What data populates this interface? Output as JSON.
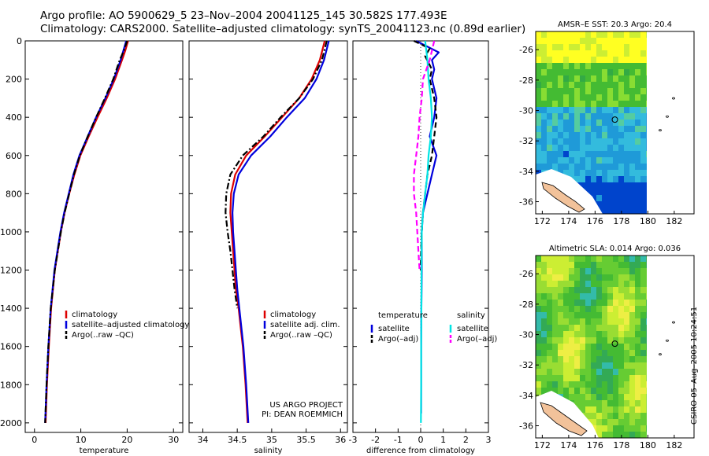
{
  "header": {
    "line1": "Argo profile: AO 5900629_5 23–Nov–2004 20041125_145 30.582S 177.493E",
    "line2": "Climatology: CARS2000. Satellite–adjusted climatology: synTS_20041123.nc (0.89d earlier)"
  },
  "side_label": "CSIRO 05–Aug–2005 10:24:51",
  "colors": {
    "red": "#dd0000",
    "blue": "#0000dd",
    "black": "#000000",
    "cyan": "#00e5e5",
    "magenta": "#ff00ff"
  },
  "chart_data": [
    {
      "type": "line",
      "xlabel": "temperature",
      "xlim": [
        -2,
        32
      ],
      "xticks": [
        0,
        10,
        20,
        30
      ],
      "ylim": [
        0,
        2050
      ],
      "yticks": [
        0,
        200,
        400,
        600,
        800,
        1000,
        1200,
        1400,
        1600,
        1800,
        2000
      ],
      "legend_position": "lower-middle",
      "series": [
        {
          "name": "climatology",
          "color": "#dd0000",
          "style": "solid",
          "y": [
            0,
            50,
            100,
            200,
            300,
            400,
            500,
            600,
            700,
            800,
            900,
            1000,
            1200,
            1400,
            1600,
            1800,
            2000
          ],
          "x": [
            20.2,
            19.6,
            18.9,
            17.4,
            15.6,
            13.6,
            11.7,
            9.9,
            8.6,
            7.5,
            6.5,
            5.7,
            4.4,
            3.6,
            3.1,
            2.7,
            2.4
          ]
        },
        {
          "name": "satellite–adjusted climatology",
          "color": "#0000dd",
          "style": "solid",
          "y": [
            0,
            50,
            100,
            200,
            300,
            400,
            500,
            600,
            700,
            800,
            900,
            1000,
            1200,
            1400,
            1600,
            1800,
            2000
          ],
          "x": [
            19.8,
            19.2,
            18.6,
            17.1,
            15.3,
            13.3,
            11.5,
            9.7,
            8.4,
            7.4,
            6.4,
            5.6,
            4.3,
            3.5,
            3.0,
            2.6,
            2.3
          ]
        },
        {
          "name": "Argo(..raw –QC)",
          "color": "#000000",
          "style": "dashdot",
          "y": [
            0,
            50,
            100,
            200,
            300,
            400,
            500,
            600,
            700,
            800,
            900,
            1000,
            1200,
            1400,
            1600,
            1800,
            2000
          ],
          "x": [
            20.0,
            19.3,
            18.4,
            17.0,
            15.2,
            13.3,
            11.5,
            9.8,
            8.5,
            7.5,
            6.5,
            5.7,
            4.4,
            3.5,
            3.0,
            2.6,
            2.3
          ]
        }
      ]
    },
    {
      "type": "line",
      "xlabel": "salinity",
      "xlim": [
        33.8,
        36.1
      ],
      "xticks": [
        34,
        34.5,
        35,
        35.5,
        36
      ],
      "ylim": [
        0,
        2050
      ],
      "legend_position": "lower-middle",
      "annotation": [
        "US ARGO PROJECT",
        "PI: DEAN ROEMMICH"
      ],
      "series": [
        {
          "name": "climatology",
          "color": "#dd0000",
          "style": "solid",
          "y": [
            0,
            100,
            200,
            300,
            400,
            500,
            600,
            700,
            800,
            900,
            1000,
            1100,
            1200,
            1300,
            1400,
            1500,
            1600,
            1800,
            2000
          ],
          "x": [
            35.77,
            35.7,
            35.58,
            35.4,
            35.15,
            34.9,
            34.63,
            34.47,
            34.41,
            34.4,
            34.42,
            34.44,
            34.46,
            34.48,
            34.52,
            34.55,
            34.58,
            34.62,
            34.65
          ]
        },
        {
          "name": "satellite adj. clim.",
          "color": "#0000dd",
          "style": "solid",
          "y": [
            0,
            100,
            200,
            300,
            400,
            500,
            600,
            700,
            800,
            900,
            1000,
            1100,
            1200,
            1300,
            1400,
            1500,
            1600,
            1800,
            2000
          ],
          "x": [
            35.83,
            35.76,
            35.65,
            35.48,
            35.22,
            34.98,
            34.7,
            34.52,
            34.45,
            34.43,
            34.44,
            34.46,
            34.48,
            34.5,
            34.53,
            34.56,
            34.59,
            34.63,
            34.66
          ]
        },
        {
          "name": "Argo(..raw –QC)",
          "color": "#000000",
          "style": "dashdot",
          "y": [
            0,
            100,
            200,
            300,
            400,
            500,
            600,
            700,
            800,
            900,
            1000,
            1100,
            1200,
            1300,
            1400
          ],
          "x": [
            35.8,
            35.73,
            35.6,
            35.4,
            35.13,
            34.88,
            34.58,
            34.4,
            34.34,
            34.33,
            34.36,
            34.4,
            34.43,
            34.46,
            34.5
          ]
        }
      ]
    },
    {
      "type": "line",
      "xlabel": "difference from climatology",
      "xlim": [
        -3,
        3
      ],
      "xticks": [
        -3,
        -2,
        -1,
        0,
        1,
        2,
        3
      ],
      "ylim": [
        0,
        2050
      ],
      "legend_position": "lower",
      "legend_groups": [
        {
          "title": "temperature",
          "items": [
            {
              "label": "satellite",
              "color": "#0000dd",
              "style": "solid"
            },
            {
              "label": "Argo(–adj)",
              "color": "#000000",
              "style": "dashed"
            }
          ]
        },
        {
          "title": "salinity",
          "items": [
            {
              "label": "satellite",
              "color": "#00e5e5",
              "style": "solid"
            },
            {
              "label": "Argo(–adj)",
              "color": "#ff00ff",
              "style": "dashed"
            }
          ]
        }
      ],
      "series": [
        {
          "name": "temperature satellite",
          "color": "#0000dd",
          "style": "solid",
          "y": [
            0,
            30,
            60,
            100,
            150,
            200,
            300,
            400,
            500,
            600,
            700,
            800,
            900,
            1000,
            1200,
            1400,
            1600,
            1800,
            1950
          ],
          "x": [
            -0.2,
            0.3,
            0.8,
            0.5,
            0.6,
            0.5,
            0.7,
            0.6,
            0.4,
            0.7,
            0.5,
            0.3,
            0.1,
            0.05,
            0.05,
            0.03,
            0.02,
            0.02,
            0.02
          ]
        },
        {
          "name": "temperature Argo(–adj)",
          "color": "#000000",
          "style": "dashed",
          "y": [
            0,
            40,
            80,
            150,
            200,
            300,
            400,
            500,
            600,
            700,
            800,
            900,
            1000,
            1100,
            1200
          ],
          "x": [
            -0.3,
            0.4,
            0.2,
            0.5,
            0.4,
            0.6,
            0.7,
            0.6,
            0.5,
            0.3,
            0.2,
            0.1,
            0.05,
            0.02,
            0.0
          ]
        },
        {
          "name": "salinity satellite",
          "color": "#00e5e5",
          "style": "solid",
          "y": [
            0,
            100,
            200,
            300,
            400,
            500,
            600,
            700,
            800,
            900,
            1000,
            1200,
            1400,
            1600,
            1800,
            2000
          ],
          "x": [
            0.2,
            0.3,
            0.35,
            0.45,
            0.5,
            0.45,
            0.35,
            0.3,
            0.2,
            0.1,
            0.05,
            0.04,
            0.03,
            0.02,
            0.02,
            0.01
          ]
        },
        {
          "name": "salinity Argo(–adj)",
          "color": "#ff00ff",
          "style": "dashed",
          "y": [
            0,
            100,
            200,
            300,
            400,
            500,
            600,
            700,
            800,
            900,
            1000,
            1100,
            1200
          ],
          "x": [
            0.6,
            0.4,
            0.1,
            0.05,
            -0.05,
            -0.1,
            -0.2,
            -0.3,
            -0.3,
            -0.2,
            -0.15,
            -0.1,
            -0.05
          ]
        }
      ]
    },
    {
      "type": "heatmap",
      "title": "AMSR–E SST: 20.3 Argo: 20.4",
      "xticks": [
        172,
        174,
        176,
        178,
        180,
        182
      ],
      "yticks": [
        -26,
        -28,
        -30,
        -32,
        -34,
        -36
      ],
      "xlim": [
        171.5,
        183.5
      ],
      "ylim": [
        -36.8,
        -24.8
      ],
      "marker": [
        177.5,
        -30.6
      ]
    },
    {
      "type": "heatmap",
      "title": "Altimetric SLA: 0.014 Argo: 0.036",
      "xticks": [
        172,
        174,
        176,
        178,
        180,
        182
      ],
      "yticks": [
        -26,
        -28,
        -30,
        -32,
        -34,
        -36
      ],
      "xlim": [
        171.5,
        183.5
      ],
      "ylim": [
        -36.8,
        -24.8
      ],
      "marker": [
        177.5,
        -30.6
      ]
    }
  ]
}
